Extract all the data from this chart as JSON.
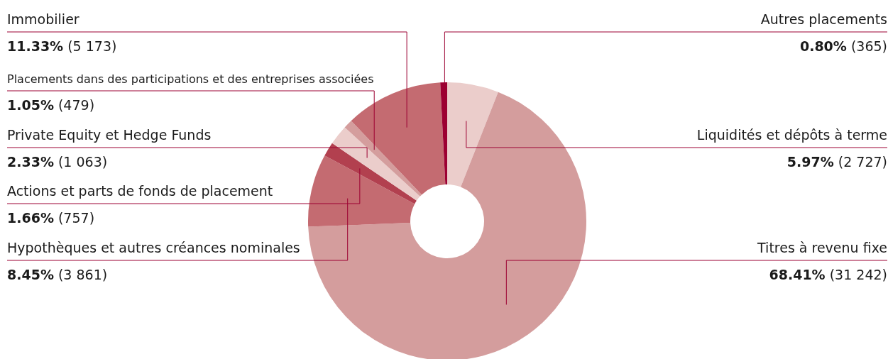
{
  "chart_data": {
    "type": "donut",
    "categories": [
      "Liquidités et dépôts à terme",
      "Titres à revenu fixe",
      "Hypothèques et autres créances nominales",
      "Actions et parts de fonds de placement",
      "Private Equity et Hedge Funds",
      "Placements dans des participations et des entreprises associées",
      "Immobilier",
      "Autres placements"
    ],
    "values": [
      2727,
      31242,
      3861,
      757,
      1063,
      479,
      5173,
      365
    ],
    "value_labels": [
      "5.97% (2 727)",
      "68.41% (31 242)",
      "8.45% (3 861)",
      "1.66% (757)",
      "2.33% (1 063)",
      "1.05% (479)",
      "11.33% (5 173)",
      "0.80% (365)"
    ],
    "colors": [
      "#ebcdcb",
      "#d49d9d",
      "#c46b71",
      "#b2404f",
      "#ebcdcb",
      "#d49d9d",
      "#c46b71",
      "#9c0032"
    ],
    "legend": false
  }
}
